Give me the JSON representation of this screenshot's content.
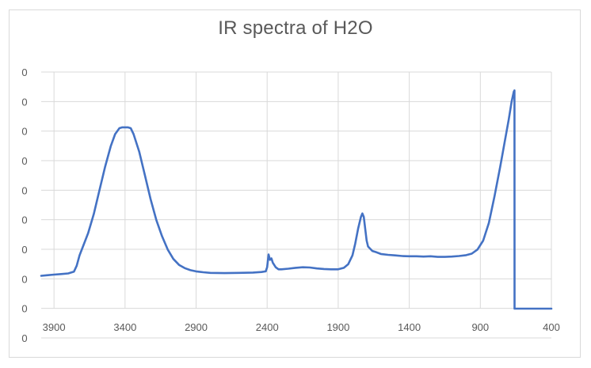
{
  "chart_data": {
    "type": "line",
    "title": "IR spectra of H2O",
    "xlabel": "",
    "ylabel": "",
    "x_reversed": true,
    "xlim": [
      3990,
      400
    ],
    "ylim": [
      0,
      1.0
    ],
    "grid": true,
    "legend": "none",
    "x_ticks": [
      {
        "value": 3900,
        "label": "3900"
      },
      {
        "value": 3400,
        "label": "3400"
      },
      {
        "value": 2900,
        "label": "2900"
      },
      {
        "value": 2400,
        "label": "2400"
      },
      {
        "value": 1900,
        "label": "1900"
      },
      {
        "value": 1400,
        "label": "1400"
      },
      {
        "value": 900,
        "label": "900"
      },
      {
        "value": 400,
        "label": "400"
      }
    ],
    "y_ticks": [
      {
        "value": 0.9,
        "label": "0"
      },
      {
        "value": 0.8,
        "label": "0"
      },
      {
        "value": 0.7,
        "label": "0"
      },
      {
        "value": 0.6,
        "label": "0"
      },
      {
        "value": 0.5,
        "label": "0"
      },
      {
        "value": 0.4,
        "label": "0"
      },
      {
        "value": 0.3,
        "label": "0"
      },
      {
        "value": 0.2,
        "label": "0"
      },
      {
        "value": 0.1,
        "label": "0"
      },
      {
        "value": 0.0,
        "label": "0"
      }
    ],
    "series": [
      {
        "name": "",
        "color": "#4472c4",
        "points": [
          [
            3990,
            0.111
          ],
          [
            3950,
            0.113
          ],
          [
            3900,
            0.115
          ],
          [
            3850,
            0.117
          ],
          [
            3800,
            0.119
          ],
          [
            3780,
            0.122
          ],
          [
            3760,
            0.125
          ],
          [
            3740,
            0.145
          ],
          [
            3720,
            0.18
          ],
          [
            3700,
            0.205
          ],
          [
            3660,
            0.255
          ],
          [
            3620,
            0.32
          ],
          [
            3580,
            0.4
          ],
          [
            3540,
            0.48
          ],
          [
            3500,
            0.55
          ],
          [
            3470,
            0.59
          ],
          [
            3440,
            0.61
          ],
          [
            3420,
            0.613
          ],
          [
            3380,
            0.613
          ],
          [
            3360,
            0.61
          ],
          [
            3340,
            0.59
          ],
          [
            3300,
            0.53
          ],
          [
            3260,
            0.45
          ],
          [
            3220,
            0.37
          ],
          [
            3180,
            0.3
          ],
          [
            3140,
            0.245
          ],
          [
            3100,
            0.2
          ],
          [
            3060,
            0.168
          ],
          [
            3020,
            0.148
          ],
          [
            2980,
            0.137
          ],
          [
            2940,
            0.13
          ],
          [
            2900,
            0.126
          ],
          [
            2850,
            0.123
          ],
          [
            2800,
            0.121
          ],
          [
            2700,
            0.12
          ],
          [
            2600,
            0.121
          ],
          [
            2500,
            0.122
          ],
          [
            2440,
            0.124
          ],
          [
            2410,
            0.126
          ],
          [
            2400,
            0.14
          ],
          [
            2390,
            0.183
          ],
          [
            2380,
            0.165
          ],
          [
            2370,
            0.17
          ],
          [
            2360,
            0.155
          ],
          [
            2340,
            0.14
          ],
          [
            2320,
            0.133
          ],
          [
            2300,
            0.133
          ],
          [
            2250,
            0.135
          ],
          [
            2200,
            0.138
          ],
          [
            2150,
            0.14
          ],
          [
            2100,
            0.139
          ],
          [
            2050,
            0.136
          ],
          [
            2000,
            0.134
          ],
          [
            1950,
            0.133
          ],
          [
            1900,
            0.133
          ],
          [
            1860,
            0.138
          ],
          [
            1830,
            0.15
          ],
          [
            1800,
            0.18
          ],
          [
            1780,
            0.22
          ],
          [
            1760,
            0.27
          ],
          [
            1740,
            0.31
          ],
          [
            1730,
            0.322
          ],
          [
            1720,
            0.31
          ],
          [
            1710,
            0.27
          ],
          [
            1700,
            0.23
          ],
          [
            1690,
            0.21
          ],
          [
            1680,
            0.205
          ],
          [
            1660,
            0.195
          ],
          [
            1640,
            0.192
          ],
          [
            1600,
            0.185
          ],
          [
            1550,
            0.182
          ],
          [
            1500,
            0.18
          ],
          [
            1450,
            0.178
          ],
          [
            1400,
            0.177
          ],
          [
            1350,
            0.177
          ],
          [
            1300,
            0.176
          ],
          [
            1250,
            0.177
          ],
          [
            1200,
            0.175
          ],
          [
            1150,
            0.175
          ],
          [
            1100,
            0.176
          ],
          [
            1050,
            0.178
          ],
          [
            1000,
            0.181
          ],
          [
            960,
            0.186
          ],
          [
            920,
            0.2
          ],
          [
            880,
            0.23
          ],
          [
            840,
            0.29
          ],
          [
            800,
            0.38
          ],
          [
            760,
            0.48
          ],
          [
            730,
            0.56
          ],
          [
            700,
            0.64
          ],
          [
            680,
            0.7
          ],
          [
            665,
            0.733
          ],
          [
            660,
            0.738
          ],
          [
            659,
            0.0
          ],
          [
            600,
            0.0
          ],
          [
            500,
            0.0
          ],
          [
            400,
            0.0
          ]
        ]
      }
    ]
  }
}
